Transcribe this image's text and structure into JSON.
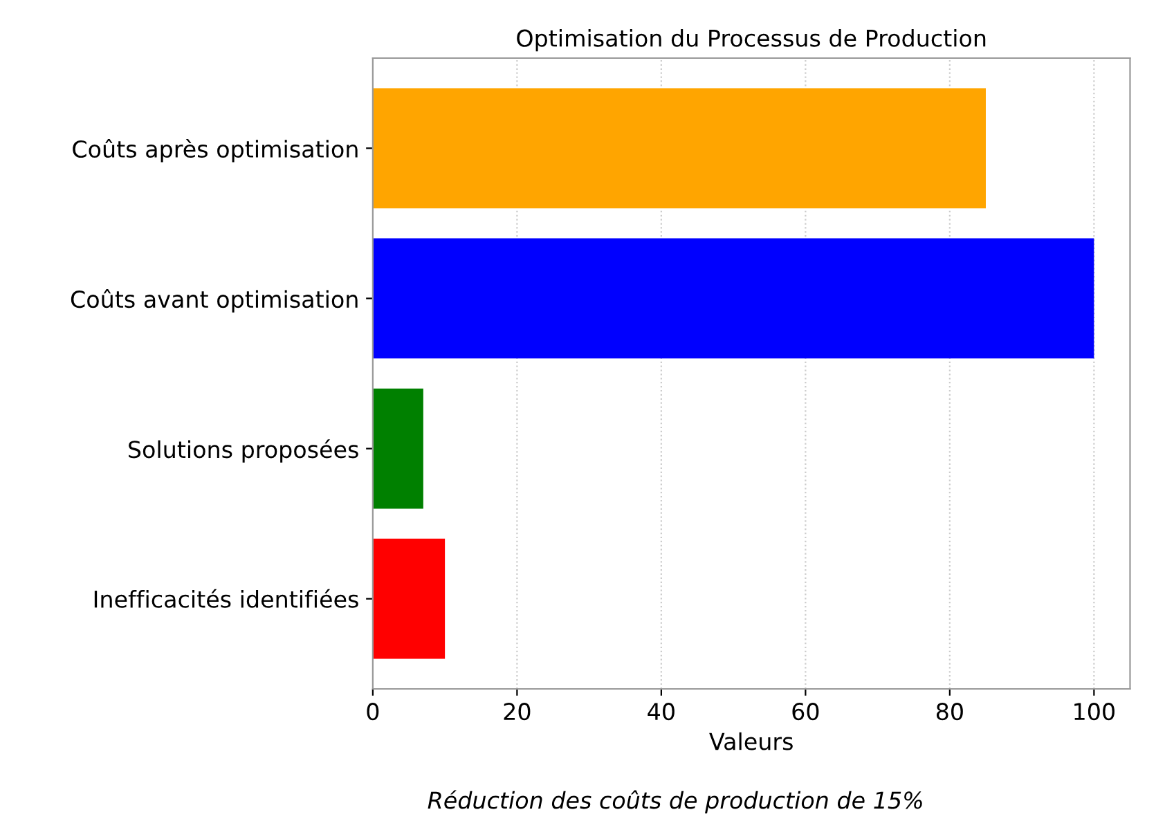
{
  "chart_data": {
    "type": "bar",
    "orientation": "horizontal",
    "title": "Optimisation du Processus de Production",
    "xlabel": "Valeurs",
    "categories": [
      "Coûts après optimisation",
      "Coûts avant optimisation",
      "Solutions proposées",
      "Inefficacités identifiées"
    ],
    "values": [
      85,
      100,
      7,
      10
    ],
    "colors": [
      "#ffa500",
      "#0000ff",
      "#008000",
      "#ff0000"
    ],
    "xlim": [
      0,
      105
    ],
    "xticks": [
      0,
      20,
      40,
      60,
      80,
      100
    ],
    "grid": "x",
    "annotations": [
      "Réduction des coûts de production de 15%"
    ]
  }
}
